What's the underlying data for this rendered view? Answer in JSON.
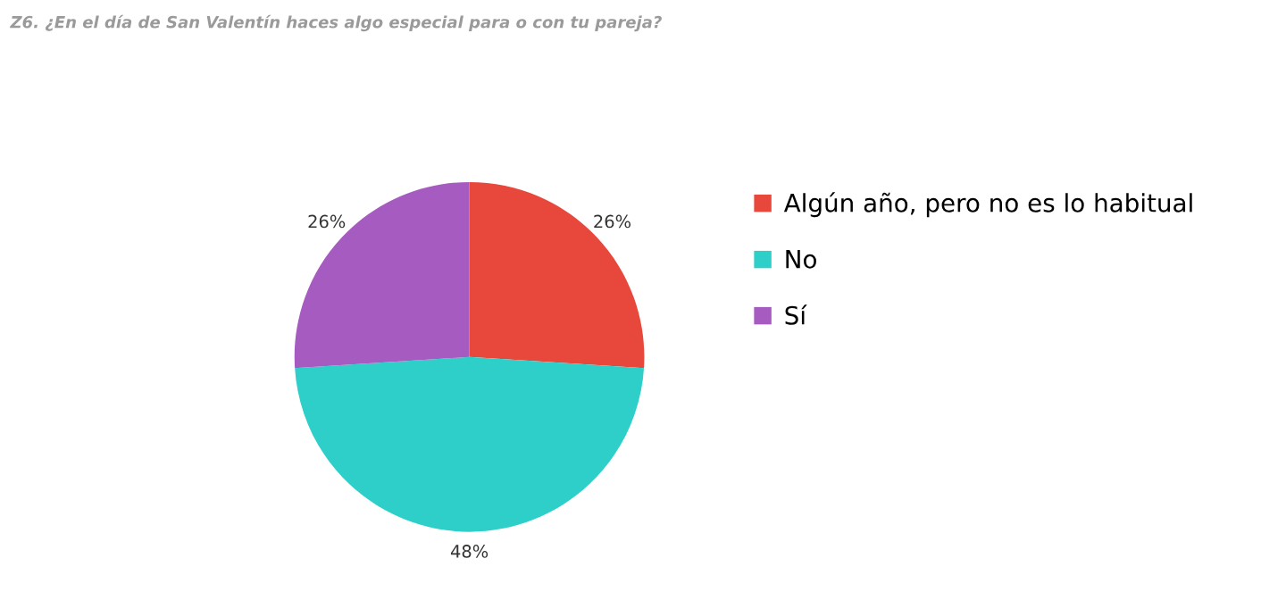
{
  "chart_data": {
    "type": "pie",
    "title": "Z6. ¿En el día de San Valentín haces algo especial para o con tu pareja?",
    "categories": [
      "Algún año, pero no es lo habitual",
      "No",
      "Sí"
    ],
    "values": [
      26,
      48,
      26
    ],
    "colors": [
      "#e8483c",
      "#2ecfc9",
      "#a55bc0"
    ],
    "value_labels": [
      "26%",
      "48%",
      "26%"
    ],
    "legend": "right"
  }
}
